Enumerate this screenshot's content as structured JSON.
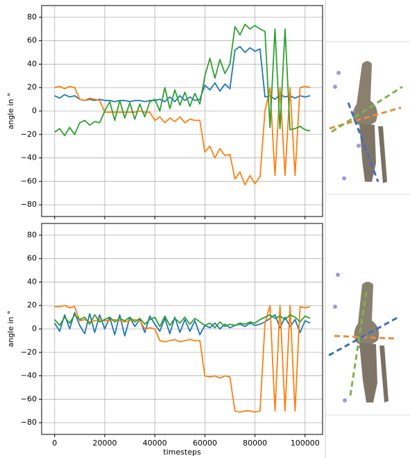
{
  "chart_data": [
    {
      "type": "line",
      "ylabel": "angle in °",
      "xlim": [
        -5200,
        107000
      ],
      "ylim": [
        -90,
        90
      ],
      "grid": true,
      "xticks": [
        0,
        20000,
        40000,
        60000,
        80000,
        100000
      ],
      "yticks": [
        {
          "value": -80,
          "label": "−80"
        },
        {
          "value": -60,
          "label": "−60"
        },
        {
          "value": -40,
          "label": "−40"
        },
        {
          "value": -20,
          "label": "−20"
        },
        0,
        20,
        40,
        60,
        80
      ],
      "x": [
        0,
        2000,
        4000,
        6000,
        8000,
        10000,
        12000,
        14000,
        16000,
        18000,
        20000,
        22000,
        24000,
        26000,
        28000,
        30000,
        32000,
        34000,
        36000,
        38000,
        40000,
        42000,
        44000,
        46000,
        48000,
        50000,
        52000,
        54000,
        56000,
        58000,
        60000,
        62000,
        64000,
        66000,
        68000,
        70000,
        72000,
        74000,
        76000,
        78000,
        80000,
        82000,
        84000,
        86000,
        88000,
        90000,
        92000,
        94000,
        96000,
        98000,
        100000,
        102000
      ],
      "series": [
        {
          "color": "#1f77b4",
          "values": [
            13,
            11,
            14,
            12,
            13,
            10,
            9,
            10,
            9,
            10,
            9,
            9,
            8,
            9,
            9,
            8,
            9,
            9,
            8,
            9,
            9,
            10,
            8,
            12,
            8,
            13,
            9,
            12,
            9,
            10,
            22,
            18,
            24,
            17,
            23,
            19,
            52,
            55,
            50,
            54,
            51,
            53,
            12,
            13,
            10,
            14,
            12,
            13,
            11,
            13,
            12,
            13
          ]
        },
        {
          "color": "#ff7f0e",
          "values": [
            20,
            21,
            19,
            21,
            20,
            10,
            9,
            11,
            10,
            9,
            -1,
            -1,
            -1,
            -1,
            -1,
            -1,
            -1,
            0,
            -1,
            -1,
            -8,
            -5,
            -10,
            -6,
            -9,
            -5,
            -10,
            -7,
            -8,
            -8,
            -35,
            -30,
            -40,
            -32,
            -38,
            -37,
            -58,
            -52,
            -63,
            -55,
            -62,
            -56,
            0,
            20,
            -55,
            20,
            -55,
            20,
            -55,
            20,
            21,
            20
          ]
        },
        {
          "color": "#2ca02c",
          "values": [
            -18,
            -15,
            -21,
            -14,
            -20,
            -10,
            -8,
            -12,
            -9,
            -10,
            0,
            8,
            -8,
            9,
            -6,
            7,
            -7,
            6,
            -5,
            8,
            10,
            0,
            20,
            2,
            18,
            5,
            16,
            4,
            15,
            6,
            30,
            45,
            28,
            44,
            32,
            40,
            72,
            65,
            74,
            70,
            73,
            70,
            68,
            -14,
            70,
            -15,
            70,
            -16,
            -15,
            -13,
            -16,
            -17
          ]
        }
      ]
    },
    {
      "type": "line",
      "ylabel": "angle in °",
      "xlabel": "timesteps",
      "xlim": [
        -5200,
        107000
      ],
      "ylim": [
        -90,
        90
      ],
      "grid": true,
      "xticks": [
        0,
        20000,
        40000,
        60000,
        80000,
        100000
      ],
      "yticks": [
        {
          "value": -80,
          "label": "−80"
        },
        {
          "value": -60,
          "label": "−60"
        },
        {
          "value": -40,
          "label": "−40"
        },
        {
          "value": -20,
          "label": "−20"
        },
        0,
        20,
        40,
        60,
        80
      ],
      "x": [
        0,
        2000,
        4000,
        6000,
        8000,
        10000,
        12000,
        14000,
        16000,
        18000,
        20000,
        22000,
        24000,
        26000,
        28000,
        30000,
        32000,
        34000,
        36000,
        38000,
        40000,
        42000,
        44000,
        46000,
        48000,
        50000,
        52000,
        54000,
        56000,
        58000,
        60000,
        62000,
        64000,
        66000,
        68000,
        70000,
        72000,
        74000,
        76000,
        78000,
        80000,
        82000,
        84000,
        86000,
        88000,
        90000,
        92000,
        94000,
        96000,
        98000,
        100000,
        102000
      ],
      "series": [
        {
          "color": "#1f77b4",
          "values": [
            5,
            -2,
            12,
            0,
            14,
            3,
            -4,
            13,
            -3,
            12,
            0,
            10,
            -5,
            12,
            -6,
            10,
            2,
            8,
            -3,
            11,
            4,
            -2,
            9,
            -4,
            10,
            -3,
            8,
            -2,
            7,
            -5,
            3,
            1,
            5,
            0,
            4,
            1,
            3,
            4,
            2,
            5,
            3,
            4,
            6,
            9,
            12,
            1,
            10,
            2,
            8,
            -3,
            7,
            5
          ]
        },
        {
          "color": "#ff7f0e",
          "values": [
            19,
            19,
            20,
            18,
            19,
            7,
            8,
            6,
            7,
            8,
            7,
            7,
            8,
            7,
            6,
            7,
            8,
            7,
            0,
            1,
            0,
            -10,
            -11,
            -10,
            -9,
            -11,
            -10,
            -9,
            -10,
            -10,
            -40,
            -41,
            -40,
            -42,
            -40,
            -41,
            -70,
            -71,
            -70,
            -70,
            -71,
            -70,
            5,
            20,
            -70,
            20,
            -70,
            20,
            -70,
            19,
            18,
            19
          ]
        },
        {
          "color": "#2ca02c",
          "values": [
            8,
            3,
            10,
            5,
            12,
            8,
            10,
            4,
            12,
            6,
            8,
            10,
            6,
            9,
            7,
            10,
            6,
            9,
            4,
            8,
            10,
            2,
            11,
            3,
            9,
            5,
            10,
            4,
            9,
            6,
            3,
            5,
            1,
            6,
            2,
            4,
            3,
            5,
            4,
            6,
            5,
            8,
            10,
            12,
            9,
            11,
            8,
            12,
            10,
            6,
            11,
            9
          ]
        }
      ]
    }
  ]
}
